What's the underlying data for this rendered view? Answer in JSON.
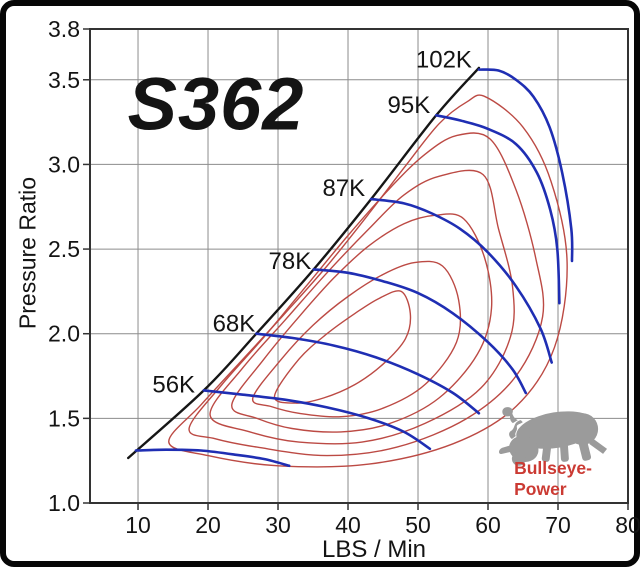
{
  "window": {
    "background": "#ffffff",
    "frame_color": "#060606"
  },
  "chart_data": {
    "type": "line",
    "title": "S362",
    "xlabel": "LBS / Min",
    "ylabel": "Pressure Ratio",
    "xlim": [
      3.14,
      80
    ],
    "ylim": [
      1.0,
      3.8
    ],
    "x_ticks": [
      10,
      20,
      30,
      40,
      50,
      60,
      70,
      80
    ],
    "y_ticks": [
      1.0,
      1.5,
      2.0,
      2.5,
      3.0,
      3.5,
      3.8
    ],
    "grid": true,
    "legend_position": "none",
    "colors": {
      "speed_line": "#1f2eb3",
      "island": "#bc4a44",
      "surge": "#161616",
      "grid": "#8c8c8c",
      "axis": "#333333",
      "tick_text": "#141414",
      "label_text": "#141414"
    },
    "surge_line": {
      "name": "surge-line",
      "points": [
        [
          8.6,
          1.266
        ],
        [
          19.4,
          1.665
        ],
        [
          26.9,
          2.0
        ],
        [
          35.1,
          2.38
        ],
        [
          43.3,
          2.795
        ],
        [
          52.6,
          3.29
        ],
        [
          58.7,
          3.57
        ]
      ]
    },
    "speed_lines": [
      {
        "label": "",
        "label_pos": null,
        "points": [
          [
            9.7,
            1.31
          ],
          [
            14,
            1.315
          ],
          [
            19,
            1.31
          ],
          [
            24,
            1.285
          ],
          [
            28,
            1.26
          ],
          [
            31.6,
            1.22
          ]
        ]
      },
      {
        "label": "56K",
        "label_pos": [
          15.1,
          1.7
        ],
        "points": [
          [
            19.4,
            1.665
          ],
          [
            25,
            1.64
          ],
          [
            31,
            1.61
          ],
          [
            37,
            1.565
          ],
          [
            43,
            1.5
          ],
          [
            48,
            1.42
          ],
          [
            51.7,
            1.32
          ]
        ]
      },
      {
        "label": "68K",
        "label_pos": [
          23.7,
          2.06
        ],
        "points": [
          [
            26.9,
            2.0
          ],
          [
            32,
            1.975
          ],
          [
            38,
            1.93
          ],
          [
            44,
            1.86
          ],
          [
            50,
            1.76
          ],
          [
            55,
            1.65
          ],
          [
            58.7,
            1.53
          ]
        ]
      },
      {
        "label": "78K",
        "label_pos": [
          31.7,
          2.43
        ],
        "points": [
          [
            35.1,
            2.38
          ],
          [
            40,
            2.36
          ],
          [
            45,
            2.31
          ],
          [
            50,
            2.24
          ],
          [
            55,
            2.12
          ],
          [
            60,
            1.95
          ],
          [
            63.5,
            1.79
          ],
          [
            65.4,
            1.65
          ]
        ]
      },
      {
        "label": "87K",
        "label_pos": [
          39.4,
          2.86
        ],
        "points": [
          [
            43.3,
            2.795
          ],
          [
            48,
            2.77
          ],
          [
            52,
            2.71
          ],
          [
            56,
            2.62
          ],
          [
            60,
            2.48
          ],
          [
            64,
            2.28
          ],
          [
            67.5,
            2.03
          ],
          [
            69.1,
            1.83
          ]
        ]
      },
      {
        "label": "95K",
        "label_pos": [
          48.7,
          3.35
        ],
        "points": [
          [
            52.6,
            3.29
          ],
          [
            56,
            3.26
          ],
          [
            60,
            3.21
          ],
          [
            64,
            3.12
          ],
          [
            67,
            2.95
          ],
          [
            68.9,
            2.73
          ],
          [
            69.9,
            2.5
          ],
          [
            70.2,
            2.18
          ]
        ]
      },
      {
        "label": "102K",
        "label_pos": [
          53.7,
          3.62
        ],
        "points": [
          [
            58.7,
            3.56
          ],
          [
            61.5,
            3.555
          ],
          [
            64,
            3.5
          ],
          [
            66.5,
            3.4
          ],
          [
            68.8,
            3.22
          ],
          [
            70.6,
            2.95
          ],
          [
            71.9,
            2.62
          ],
          [
            72.0,
            2.43
          ]
        ]
      }
    ],
    "efficiency_islands": [
      {
        "points": [
          [
            14.4,
            1.36
          ],
          [
            19,
            1.58
          ],
          [
            25,
            1.85
          ],
          [
            31,
            2.12
          ],
          [
            37,
            2.4
          ],
          [
            43,
            2.71
          ],
          [
            48,
            2.98
          ],
          [
            53,
            3.24
          ],
          [
            57,
            3.37
          ],
          [
            59.6,
            3.4
          ],
          [
            65,
            3.22
          ],
          [
            69,
            2.9
          ],
          [
            71.3,
            2.42
          ],
          [
            69.5,
            1.92
          ],
          [
            64,
            1.57
          ],
          [
            55,
            1.35
          ],
          [
            43,
            1.23
          ],
          [
            30,
            1.22
          ],
          [
            20,
            1.28
          ]
        ]
      },
      {
        "points": [
          [
            17.3,
            1.44
          ],
          [
            22,
            1.7
          ],
          [
            28,
            1.98
          ],
          [
            34,
            2.28
          ],
          [
            40,
            2.58
          ],
          [
            46,
            2.86
          ],
          [
            51,
            3.06
          ],
          [
            55.5,
            3.17
          ],
          [
            60.3,
            3.15
          ],
          [
            64,
            2.85
          ],
          [
            66.8,
            2.45
          ],
          [
            67.8,
            2.1
          ],
          [
            64,
            1.75
          ],
          [
            57,
            1.5
          ],
          [
            47,
            1.33
          ],
          [
            37,
            1.28
          ],
          [
            27,
            1.33
          ],
          [
            21,
            1.38
          ]
        ]
      },
      {
        "points": [
          [
            20.3,
            1.52
          ],
          [
            25,
            1.8
          ],
          [
            31,
            2.08
          ],
          [
            37,
            2.36
          ],
          [
            43,
            2.62
          ],
          [
            48,
            2.82
          ],
          [
            53,
            2.93
          ],
          [
            59.3,
            2.94
          ],
          [
            61.5,
            2.62
          ],
          [
            63.5,
            2.28
          ],
          [
            63.2,
            1.98
          ],
          [
            59,
            1.68
          ],
          [
            51,
            1.47
          ],
          [
            42,
            1.36
          ],
          [
            33,
            1.36
          ],
          [
            26,
            1.42
          ]
        ]
      },
      {
        "points": [
          [
            23.4,
            1.58
          ],
          [
            28,
            1.85
          ],
          [
            33,
            2.1
          ],
          [
            38,
            2.33
          ],
          [
            43,
            2.52
          ],
          [
            48,
            2.65
          ],
          [
            52.5,
            2.7
          ],
          [
            56.5,
            2.68
          ],
          [
            59.5,
            2.45
          ],
          [
            60.5,
            2.15
          ],
          [
            58.5,
            1.88
          ],
          [
            53,
            1.62
          ],
          [
            46,
            1.47
          ],
          [
            39,
            1.42
          ],
          [
            32,
            1.44
          ],
          [
            27,
            1.5
          ]
        ]
      },
      {
        "points": [
          [
            26.4,
            1.62
          ],
          [
            30.5,
            1.85
          ],
          [
            35,
            2.05
          ],
          [
            40,
            2.22
          ],
          [
            45,
            2.35
          ],
          [
            49.5,
            2.42
          ],
          [
            53.5,
            2.4
          ],
          [
            55.8,
            2.2
          ],
          [
            55.5,
            1.95
          ],
          [
            51,
            1.7
          ],
          [
            45,
            1.56
          ],
          [
            39,
            1.51
          ],
          [
            33,
            1.53
          ],
          [
            29,
            1.57
          ]
        ]
      },
      {
        "points": [
          [
            29.5,
            1.63
          ],
          [
            33,
            1.85
          ],
          [
            37,
            2.0
          ],
          [
            41,
            2.12
          ],
          [
            44.5,
            2.21
          ],
          [
            47.6,
            2.25
          ],
          [
            48.9,
            2.12
          ],
          [
            48.2,
            1.97
          ],
          [
            45,
            1.82
          ],
          [
            41,
            1.7
          ],
          [
            36.5,
            1.62
          ],
          [
            32.5,
            1.59
          ]
        ]
      }
    ]
  },
  "branding": {
    "name": "Bullseye-Power",
    "text_color": "#cb3a33",
    "bull_color": "#9b9b9b"
  }
}
